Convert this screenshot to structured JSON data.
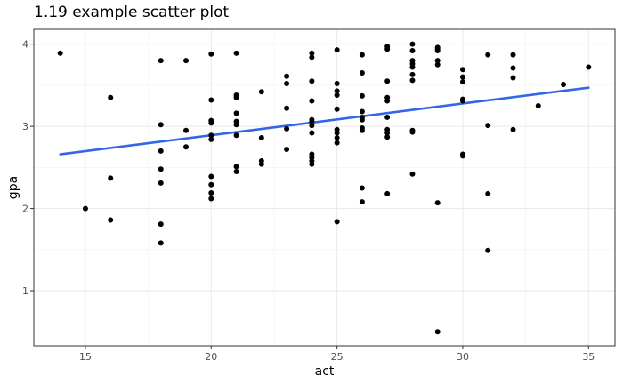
{
  "chart_data": {
    "type": "scatter",
    "title": "1.19 example scatter plot",
    "xlabel": "act",
    "ylabel": "gpa",
    "xlim": [
      12.95,
      36.05
    ],
    "ylim": [
      0.33,
      4.18
    ],
    "x_ticks": [
      15,
      20,
      25,
      30,
      35
    ],
    "y_ticks": [
      1,
      2,
      3,
      4
    ],
    "x_tick_labels": [
      "15",
      "20",
      "25",
      "30",
      "35"
    ],
    "y_tick_labels": [
      "1",
      "2",
      "3",
      "4"
    ],
    "grid": true,
    "regression_line": {
      "x": [
        14,
        35
      ],
      "y": [
        2.66,
        3.47
      ],
      "color": "#3366e6"
    },
    "points": [
      [
        14,
        3.89
      ],
      [
        15,
        2.0
      ],
      [
        16,
        3.35
      ],
      [
        16,
        2.37
      ],
      [
        16,
        1.86
      ],
      [
        18,
        3.8
      ],
      [
        18,
        3.02
      ],
      [
        18,
        2.7
      ],
      [
        18,
        2.48
      ],
      [
        18,
        2.31
      ],
      [
        18,
        1.81
      ],
      [
        18,
        1.58
      ],
      [
        19,
        3.8
      ],
      [
        19,
        2.95
      ],
      [
        19,
        2.75
      ],
      [
        20,
        3.88
      ],
      [
        20,
        3.32
      ],
      [
        20,
        3.07
      ],
      [
        20,
        3.04
      ],
      [
        20,
        2.89
      ],
      [
        20,
        2.84
      ],
      [
        20,
        2.39
      ],
      [
        20,
        2.29
      ],
      [
        20,
        2.19
      ],
      [
        20,
        2.12
      ],
      [
        21,
        3.89
      ],
      [
        21,
        3.38
      ],
      [
        21,
        3.35
      ],
      [
        21,
        3.16
      ],
      [
        21,
        3.06
      ],
      [
        21,
        3.02
      ],
      [
        21,
        2.89
      ],
      [
        21,
        2.51
      ],
      [
        21,
        2.45
      ],
      [
        22,
        3.42
      ],
      [
        22,
        2.86
      ],
      [
        22,
        2.58
      ],
      [
        22,
        2.54
      ],
      [
        23,
        3.61
      ],
      [
        23,
        3.52
      ],
      [
        23,
        3.22
      ],
      [
        23,
        2.97
      ],
      [
        23,
        2.72
      ],
      [
        24,
        3.89
      ],
      [
        24,
        3.84
      ],
      [
        24,
        3.55
      ],
      [
        24,
        3.31
      ],
      [
        24,
        3.08
      ],
      [
        24,
        3.06
      ],
      [
        24,
        3.01
      ],
      [
        24,
        2.92
      ],
      [
        24,
        2.66
      ],
      [
        24,
        2.62
      ],
      [
        24,
        2.58
      ],
      [
        24,
        2.54
      ],
      [
        25,
        3.93
      ],
      [
        25,
        3.52
      ],
      [
        25,
        3.43
      ],
      [
        25,
        3.38
      ],
      [
        25,
        3.21
      ],
      [
        25,
        2.96
      ],
      [
        25,
        2.92
      ],
      [
        25,
        2.86
      ],
      [
        25,
        2.8
      ],
      [
        25,
        1.84
      ],
      [
        26,
        3.87
      ],
      [
        26,
        3.65
      ],
      [
        26,
        3.37
      ],
      [
        26,
        3.18
      ],
      [
        26,
        3.11
      ],
      [
        26,
        3.08
      ],
      [
        26,
        2.98
      ],
      [
        26,
        2.95
      ],
      [
        26,
        2.25
      ],
      [
        26,
        2.08
      ],
      [
        27,
        3.97
      ],
      [
        27,
        3.94
      ],
      [
        27,
        3.55
      ],
      [
        27,
        3.35
      ],
      [
        27,
        3.31
      ],
      [
        27,
        3.11
      ],
      [
        27,
        2.96
      ],
      [
        27,
        2.92
      ],
      [
        27,
        2.87
      ],
      [
        27,
        2.18
      ],
      [
        28,
        4.0
      ],
      [
        28,
        3.92
      ],
      [
        28,
        3.8
      ],
      [
        28,
        3.76
      ],
      [
        28,
        3.72
      ],
      [
        28,
        3.63
      ],
      [
        28,
        3.56
      ],
      [
        28,
        2.95
      ],
      [
        28,
        2.93
      ],
      [
        28,
        2.42
      ],
      [
        29,
        3.96
      ],
      [
        29,
        3.94
      ],
      [
        29,
        3.92
      ],
      [
        29,
        3.8
      ],
      [
        29,
        3.75
      ],
      [
        29,
        2.07
      ],
      [
        29,
        0.5
      ],
      [
        30,
        3.69
      ],
      [
        30,
        3.6
      ],
      [
        30,
        3.54
      ],
      [
        30,
        3.33
      ],
      [
        30,
        3.31
      ],
      [
        30,
        2.66
      ],
      [
        30,
        2.64
      ],
      [
        31,
        3.87
      ],
      [
        31,
        3.01
      ],
      [
        31,
        2.18
      ],
      [
        31,
        1.49
      ],
      [
        32,
        3.87
      ],
      [
        32,
        3.71
      ],
      [
        32,
        3.59
      ],
      [
        32,
        2.96
      ],
      [
        33,
        3.25
      ],
      [
        34,
        3.51
      ],
      [
        35,
        3.72
      ]
    ]
  }
}
